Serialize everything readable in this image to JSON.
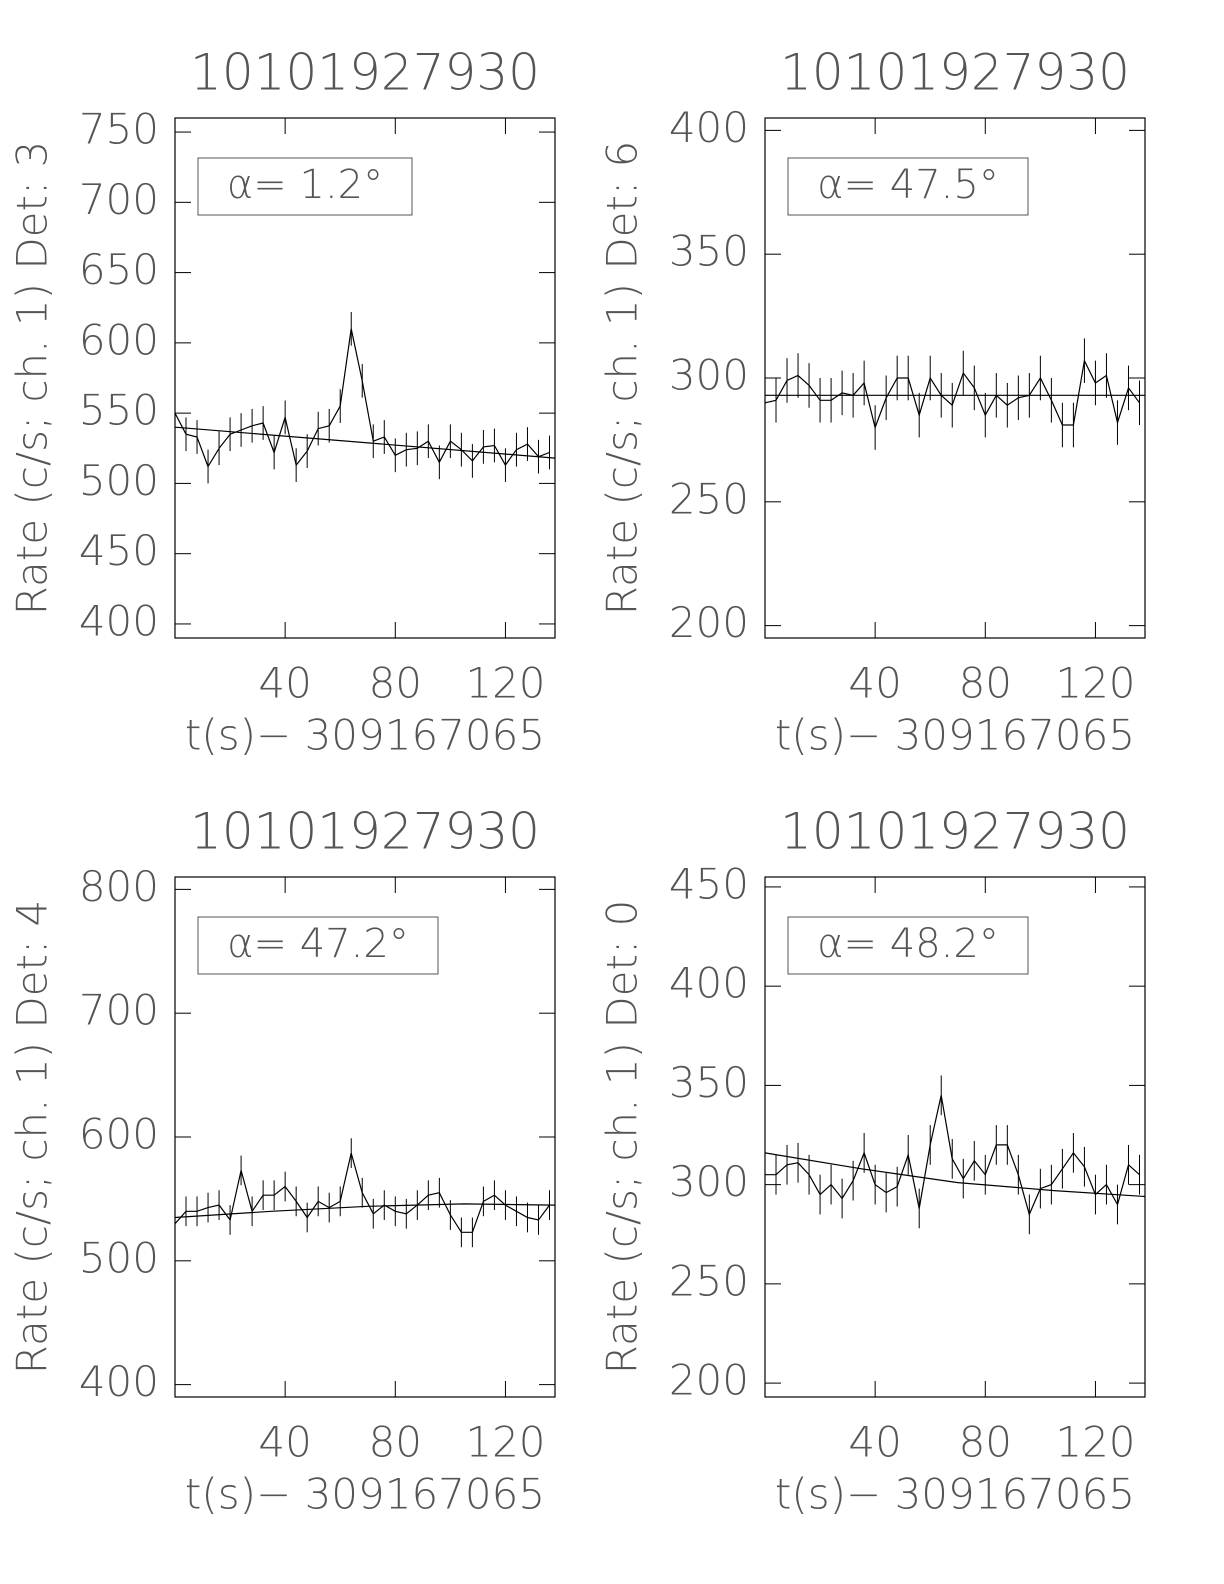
{
  "chart_data": [
    {
      "type": "line",
      "title": "10101927930",
      "xlabel": "t(s)− 309167065",
      "ylabel": "Rate (c/s; ch. 1) Det: 3",
      "annotation": "α= 1.2°",
      "x": [
        0,
        4,
        8,
        12,
        16,
        20,
        24,
        28,
        32,
        36,
        40,
        44,
        48,
        52,
        56,
        60,
        64,
        68,
        72,
        76,
        80,
        84,
        88,
        92,
        96,
        100,
        104,
        108,
        112,
        116,
        120,
        124,
        128,
        132,
        136
      ],
      "series": [
        {
          "color": "#000000",
          "values": [
            550,
            535,
            533,
            512,
            525,
            535,
            538,
            541,
            543,
            522,
            547,
            513,
            523,
            539,
            541,
            555,
            610,
            573,
            530,
            533,
            520,
            524,
            525,
            530,
            515,
            530,
            524,
            516,
            526,
            527,
            513,
            524,
            528,
            519,
            522
          ],
          "errors": [
            12,
            12,
            12,
            12,
            12,
            12,
            12,
            12,
            12,
            12,
            12,
            12,
            12,
            12,
            12,
            12,
            12,
            12,
            12,
            12,
            12,
            12,
            12,
            12,
            12,
            12,
            12,
            12,
            12,
            12,
            12,
            12,
            12,
            12,
            12
          ]
        },
        {
          "color": "#000000",
          "x": [
            0,
            138
          ],
          "values": [
            540,
            518
          ]
        }
      ],
      "xlim": [
        0,
        138
      ],
      "xticks": [
        40,
        80,
        120
      ],
      "ylim": [
        390,
        760
      ],
      "yticks": [
        400,
        450,
        500,
        550,
        600,
        650,
        700,
        750
      ]
    },
    {
      "type": "line",
      "title": "10101927930",
      "xlabel": "t(s)− 309167065",
      "ylabel": "Rate (c/s; ch. 1) Det: 6",
      "annotation": "α= 47.5°",
      "x": [
        0,
        4,
        8,
        12,
        16,
        20,
        24,
        28,
        32,
        36,
        40,
        44,
        48,
        52,
        56,
        60,
        64,
        68,
        72,
        76,
        80,
        84,
        88,
        92,
        96,
        100,
        104,
        108,
        112,
        116,
        120,
        124,
        128,
        132,
        136
      ],
      "series": [
        {
          "color": "#000000",
          "values": [
            290,
            291,
            299,
            301,
            297,
            291,
            291,
            294,
            293,
            298,
            280,
            292,
            300,
            300,
            285,
            300,
            293,
            289,
            302,
            296,
            285,
            293,
            289,
            292,
            293,
            300,
            291,
            281,
            281,
            307,
            298,
            301,
            282,
            296,
            290
          ],
          "errors": [
            9,
            9,
            9,
            9,
            9,
            9,
            9,
            9,
            9,
            9,
            9,
            9,
            9,
            9,
            9,
            9,
            9,
            9,
            9,
            9,
            9,
            9,
            9,
            9,
            9,
            9,
            9,
            9,
            9,
            9,
            9,
            9,
            9,
            9,
            9
          ]
        },
        {
          "color": "#000000",
          "x": [
            0,
            138
          ],
          "values": [
            293,
            293
          ]
        }
      ],
      "xlim": [
        0,
        138
      ],
      "xticks": [
        40,
        80,
        120
      ],
      "ylim": [
        195,
        405
      ],
      "yticks": [
        200,
        250,
        300,
        350,
        400
      ]
    },
    {
      "type": "line",
      "title": "10101927930",
      "xlabel": "t(s)− 309167065",
      "ylabel": "Rate (c/s; ch. 1) Det: 4",
      "annotation": "α= 47.2°",
      "x": [
        0,
        4,
        8,
        12,
        16,
        20,
        24,
        28,
        32,
        36,
        40,
        44,
        48,
        52,
        56,
        60,
        64,
        68,
        72,
        76,
        80,
        84,
        88,
        92,
        96,
        100,
        104,
        108,
        112,
        116,
        120,
        124,
        128,
        132,
        136
      ],
      "series": [
        {
          "color": "#000000",
          "values": [
            530,
            540,
            540,
            543,
            545,
            533,
            573,
            540,
            553,
            553,
            560,
            548,
            535,
            548,
            543,
            548,
            587,
            555,
            538,
            545,
            540,
            538,
            545,
            553,
            555,
            537,
            523,
            523,
            548,
            553,
            545,
            540,
            535,
            533,
            545
          ],
          "errors": [
            12,
            12,
            12,
            12,
            12,
            12,
            12,
            12,
            12,
            12,
            12,
            12,
            12,
            12,
            12,
            12,
            12,
            12,
            12,
            12,
            12,
            12,
            12,
            12,
            12,
            12,
            12,
            12,
            12,
            12,
            12,
            12,
            12,
            12,
            12
          ]
        },
        {
          "color": "#000000",
          "x": [
            0,
            35,
            70,
            105,
            138
          ],
          "values": [
            535,
            540,
            544,
            546,
            545
          ]
        }
      ],
      "xlim": [
        0,
        138
      ],
      "xticks": [
        40,
        80,
        120
      ],
      "ylim": [
        390,
        810
      ],
      "yticks": [
        400,
        500,
        600,
        700,
        800
      ]
    },
    {
      "type": "line",
      "title": "10101927930",
      "xlabel": "t(s)− 309167065",
      "ylabel": "Rate (c/s; ch. 1) Det: 0",
      "annotation": "α= 48.2°",
      "x": [
        0,
        4,
        8,
        12,
        16,
        20,
        24,
        28,
        32,
        36,
        40,
        44,
        48,
        52,
        56,
        60,
        64,
        68,
        72,
        76,
        80,
        84,
        88,
        92,
        96,
        100,
        104,
        108,
        112,
        116,
        120,
        124,
        128,
        132,
        136
      ],
      "series": [
        {
          "color": "#000000",
          "values": [
            305,
            305,
            310,
            311,
            305,
            295,
            300,
            293,
            302,
            316,
            300,
            296,
            299,
            315,
            288,
            320,
            345,
            313,
            303,
            312,
            305,
            320,
            320,
            305,
            285,
            298,
            300,
            308,
            316,
            309,
            295,
            300,
            290,
            310,
            305
          ],
          "errors": [
            10,
            10,
            10,
            10,
            10,
            10,
            10,
            10,
            10,
            10,
            10,
            10,
            10,
            10,
            10,
            10,
            10,
            10,
            10,
            10,
            10,
            10,
            10,
            10,
            10,
            10,
            10,
            10,
            10,
            10,
            10,
            10,
            10,
            10,
            10
          ]
        },
        {
          "color": "#000000",
          "x": [
            0,
            35,
            70,
            105,
            138
          ],
          "values": [
            316,
            308,
            301,
            297,
            294
          ]
        }
      ],
      "xlim": [
        0,
        138
      ],
      "xticks": [
        40,
        80,
        120
      ],
      "ylim": [
        193,
        455
      ],
      "yticks": [
        200,
        250,
        300,
        350,
        400,
        450
      ]
    }
  ]
}
